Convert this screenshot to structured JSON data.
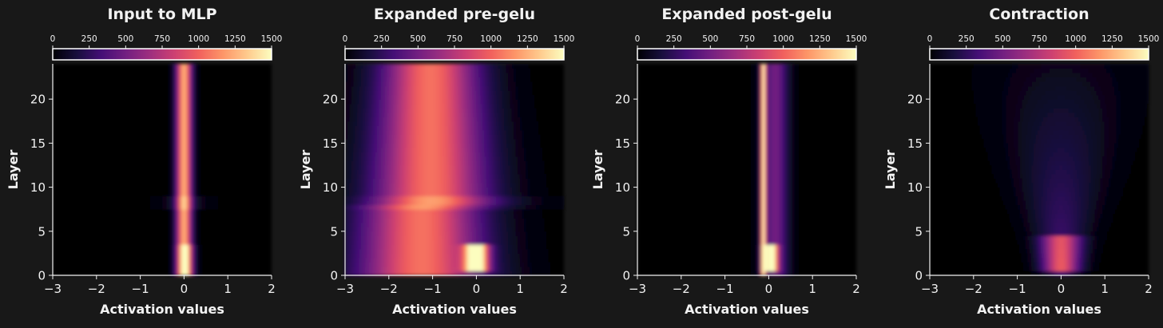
{
  "figure": {
    "background": "#181818",
    "text_color": "#f2f2f2"
  },
  "colorbar": {
    "ticks": [
      0,
      250,
      500,
      750,
      1000,
      1250,
      1500
    ],
    "range": [
      0,
      1500
    ],
    "colormap": "magma",
    "stops": [
      "#000004",
      "#180f3d",
      "#440f76",
      "#721f81",
      "#9e2f7f",
      "#cd4071",
      "#f1605d",
      "#fd9668",
      "#feca8d",
      "#fcfdbf"
    ]
  },
  "chart_data": [
    {
      "type": "heatmap",
      "id": "input",
      "title": "Input to MLP",
      "xlabel": "Activation values",
      "ylabel": "Layer",
      "xlim": [
        -3,
        2
      ],
      "ylim": [
        0,
        24
      ],
      "xticks": [
        -3,
        -2,
        -1,
        0,
        1,
        2
      ],
      "yticks": [
        0,
        5,
        10,
        15,
        20
      ],
      "clim": [
        0,
        1500
      ],
      "peaks": [
        {
          "name": "core",
          "layers": [
            0,
            24
          ],
          "center": 0.0,
          "width": 0.12,
          "value": 1250
        },
        {
          "name": "base",
          "layers": [
            0,
            3
          ],
          "center": 0.05,
          "width": 0.12,
          "value": 450
        },
        {
          "name": "band-8",
          "layers": [
            7.8,
            8.6
          ],
          "center": 0.0,
          "width": 0.35,
          "value": 120
        }
      ]
    },
    {
      "type": "heatmap",
      "id": "pre",
      "title": "Expanded pre-gelu",
      "xlabel": "Activation values",
      "ylabel": "Layer",
      "xlim": [
        -3,
        2
      ],
      "ylim": [
        0,
        24
      ],
      "xticks": [
        -3,
        -2,
        -1,
        0,
        1,
        2
      ],
      "yticks": [
        0,
        5,
        10,
        15,
        20
      ],
      "clim": [
        0,
        1500
      ],
      "peaks": [
        {
          "name": "main",
          "layers": [
            0,
            24
          ],
          "center": -1.1,
          "width": 0.8,
          "value": 1050
        },
        {
          "name": "bright-blob",
          "layers": [
            1,
            3
          ],
          "center": 0.0,
          "width": 0.18,
          "value": 1500
        },
        {
          "name": "band-8",
          "layers": [
            7.8,
            8.6
          ],
          "center": -0.8,
          "width": 1.2,
          "value": 150
        }
      ]
    },
    {
      "type": "heatmap",
      "id": "post",
      "title": "Expanded post-gelu",
      "xlabel": "Activation values",
      "ylabel": "Layer",
      "xlim": [
        -3,
        2
      ],
      "ylim": [
        0,
        24
      ],
      "xticks": [
        -3,
        -2,
        -1,
        0,
        1,
        2
      ],
      "yticks": [
        0,
        5,
        10,
        15,
        20
      ],
      "clim": [
        0,
        1500
      ],
      "peaks": [
        {
          "name": "gelu-floor",
          "layers": [
            0,
            24
          ],
          "center": -0.12,
          "width": 0.04,
          "value": 1500
        },
        {
          "name": "tail",
          "layers": [
            0,
            24
          ],
          "center": 0.15,
          "width": 0.2,
          "value": 500
        },
        {
          "name": "base-blob",
          "layers": [
            1,
            3
          ],
          "center": 0.05,
          "width": 0.1,
          "value": 1350
        }
      ]
    },
    {
      "type": "heatmap",
      "id": "contraction",
      "title": "Contraction",
      "xlabel": "Activation values",
      "ylabel": "Layer",
      "xlim": [
        -3,
        2
      ],
      "ylim": [
        0,
        24
      ],
      "xticks": [
        -3,
        -2,
        -1,
        0,
        1,
        2
      ],
      "yticks": [
        0,
        5,
        10,
        15,
        20
      ],
      "clim": [
        0,
        1500
      ],
      "peaks": [
        {
          "name": "cone",
          "layers": [
            0,
            24
          ],
          "center": 0.0,
          "width": 0.6,
          "value": 330
        },
        {
          "name": "base-glow",
          "layers": [
            1,
            4
          ],
          "center": 0.0,
          "width": 0.3,
          "value": 650
        }
      ]
    }
  ]
}
